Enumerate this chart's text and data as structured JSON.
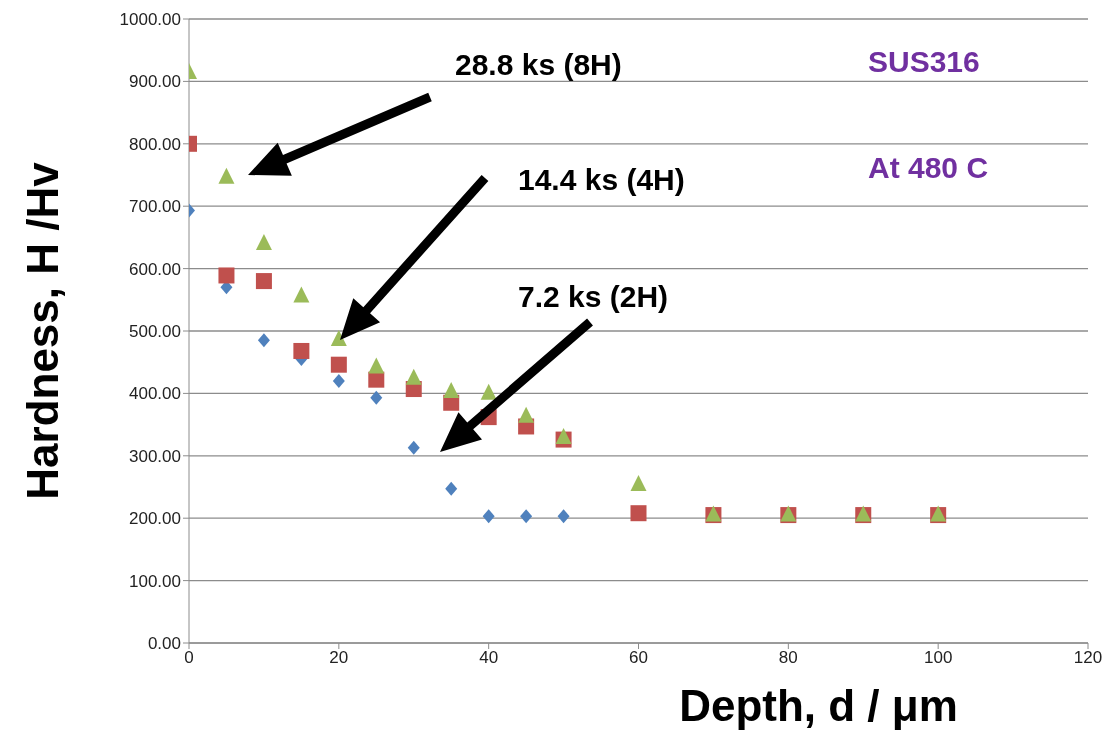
{
  "chart_data": {
    "type": "scatter",
    "xlabel": "Depth, d / μm",
    "ylabel": "Hardness, H /Hv",
    "x": [
      0,
      5,
      10,
      15,
      20,
      25,
      30,
      35,
      40,
      45,
      50,
      60,
      70,
      80,
      90,
      100
    ],
    "xlim": [
      0,
      120
    ],
    "xticks": [
      0,
      20,
      40,
      60,
      80,
      100,
      120
    ],
    "ylim": [
      0,
      1000
    ],
    "yticks": [
      {
        "value": 0,
        "label": "0.00"
      },
      {
        "value": 100,
        "label": "100.00"
      },
      {
        "value": 200,
        "label": "200.00"
      },
      {
        "value": 300,
        "label": "300.00"
      },
      {
        "value": 400,
        "label": "400.00"
      },
      {
        "value": 500,
        "label": "500.00"
      },
      {
        "value": 600,
        "label": "600.00"
      },
      {
        "value": 700,
        "label": "700.00"
      },
      {
        "value": 800,
        "label": "800.00"
      },
      {
        "value": 900,
        "label": "900.00"
      },
      {
        "value": 1000,
        "label": "1000.00"
      }
    ],
    "grid": "y",
    "legend": false,
    "series": [
      {
        "color": "#4f81bd",
        "marker": "diamond",
        "values": [
          693,
          570,
          485,
          455,
          420,
          393,
          313,
          247,
          203,
          203,
          203,
          null,
          null,
          null,
          null,
          null
        ]
      },
      {
        "color": "#c0504d",
        "marker": "square",
        "values": [
          800,
          589,
          580,
          468,
          446,
          422,
          407,
          385,
          362,
          347,
          326,
          208,
          205,
          205,
          205,
          205
        ]
      },
      {
        "color": "#9bbb59",
        "marker": "triangle",
        "values": [
          915,
          747,
          641,
          557,
          487,
          443,
          425,
          404,
          401,
          364,
          330,
          255,
          206,
          206,
          206,
          206
        ]
      }
    ],
    "annotations": [
      "28.8 ks (8H)",
      "14.4 ks (4H)",
      "7.2 ks (2H)",
      "SUS316",
      "At 480 C"
    ]
  }
}
